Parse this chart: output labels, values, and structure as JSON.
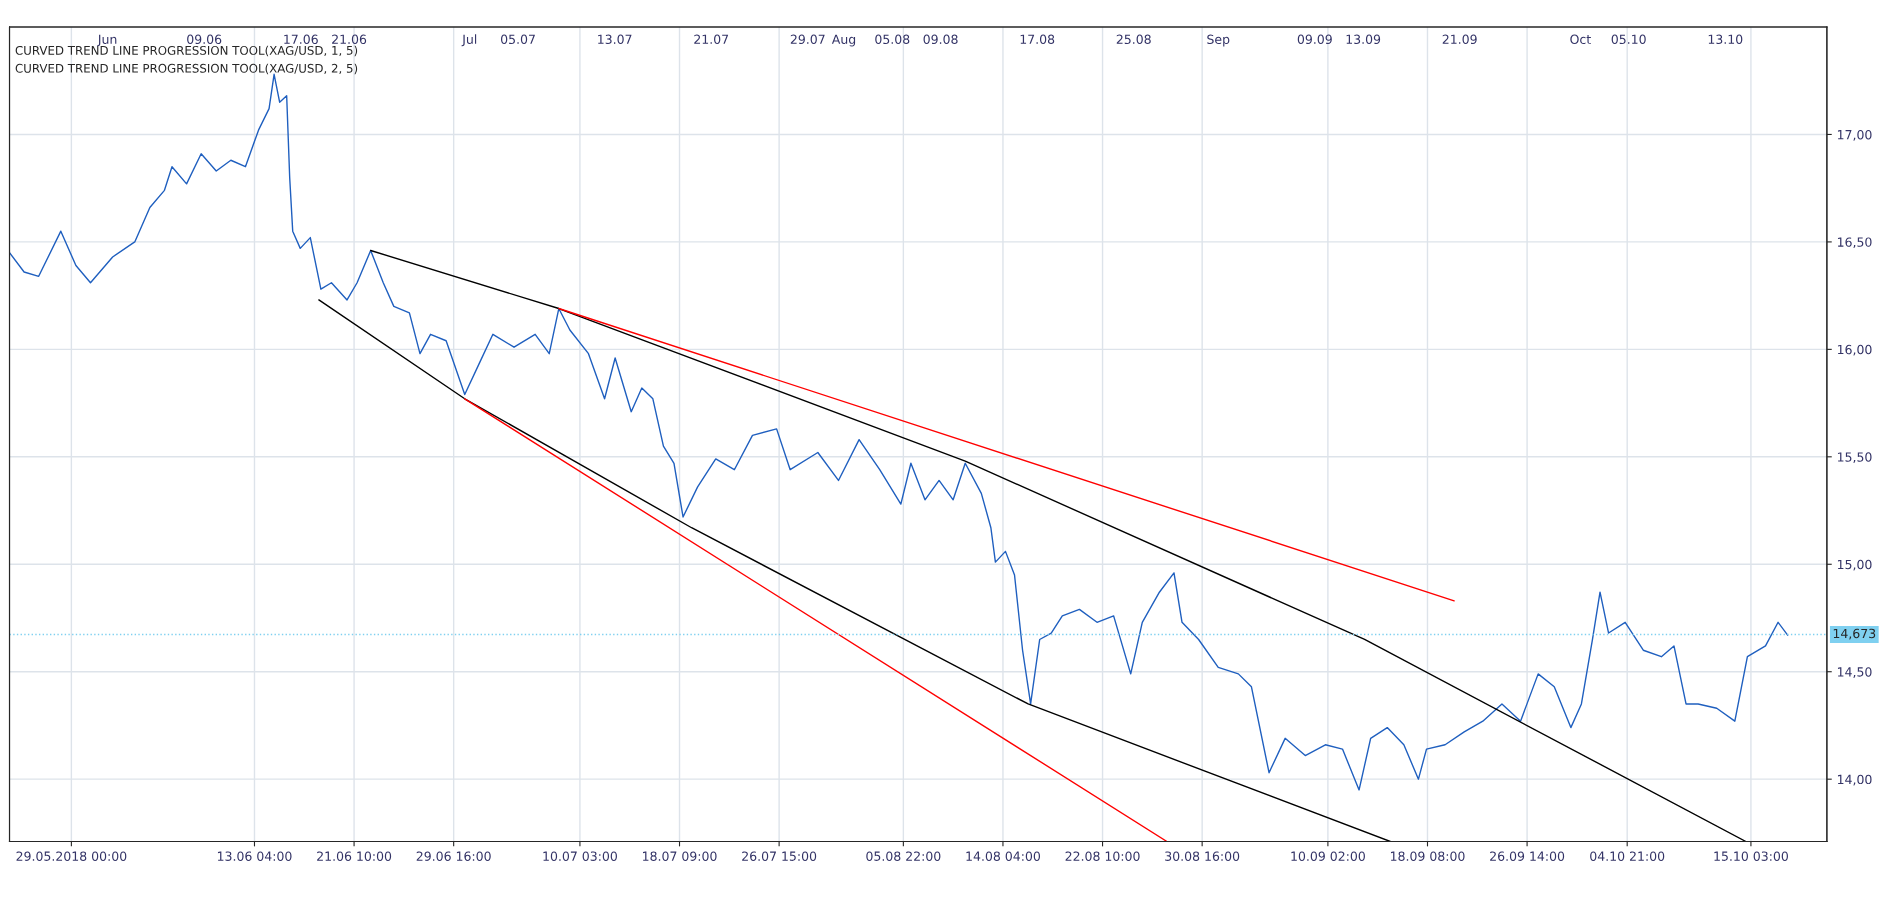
{
  "chart_data": {
    "type": "line",
    "xlim": [
      "2018-05-23T21:00",
      "2018-10-21T10:00"
    ],
    "ylim": [
      13.71,
      17.5
    ],
    "xticks": [
      {
        "value": "2018-05-29T00:00",
        "label": "29.05.2018 00:00"
      },
      {
        "value": "2018-06-13T04:00",
        "label": "13.06 04:00"
      },
      {
        "value": "2018-06-21T10:00",
        "label": "21.06 10:00"
      },
      {
        "value": "2018-06-29T16:00",
        "label": "29.06 16:00"
      },
      {
        "value": "2018-07-10T03:00",
        "label": "10.07 03:00"
      },
      {
        "value": "2018-07-18T09:00",
        "label": "18.07 09:00"
      },
      {
        "value": "2018-07-26T15:00",
        "label": "26.07 15:00"
      },
      {
        "value": "2018-08-05T22:00",
        "label": "05.08 22:00"
      },
      {
        "value": "2018-08-14T04:00",
        "label": "14.08 04:00"
      },
      {
        "value": "2018-08-22T10:00",
        "label": "22.08 10:00"
      },
      {
        "value": "2018-08-30T16:00",
        "label": "30.08 16:00"
      },
      {
        "value": "2018-09-10T02:00",
        "label": "10.09 02:00"
      },
      {
        "value": "2018-09-18T08:00",
        "label": "18.09 08:00"
      },
      {
        "value": "2018-09-26T14:00",
        "label": "26.09 14:00"
      },
      {
        "value": "2018-10-04T21:00",
        "label": "04.10 21:00"
      },
      {
        "value": "2018-10-15T03:00",
        "label": "15.10 03:00"
      }
    ],
    "x2lim": [
      "2018-05-23T21:00",
      "2018-10-21T10:00"
    ],
    "x2ticks": [
      {
        "value": "2018-06-01",
        "label": "Jun"
      },
      {
        "value": "2018-06-09",
        "label": "09.06"
      },
      {
        "value": "2018-06-17",
        "label": "17.06"
      },
      {
        "value": "2018-06-21",
        "label": "21.06"
      },
      {
        "value": "2018-07-01",
        "label": "Jul"
      },
      {
        "value": "2018-07-05",
        "label": "05.07"
      },
      {
        "value": "2018-07-13",
        "label": "13.07"
      },
      {
        "value": "2018-07-21",
        "label": "21.07"
      },
      {
        "value": "2018-07-29",
        "label": "29.07"
      },
      {
        "value": "2018-08-01",
        "label": "Aug"
      },
      {
        "value": "2018-08-05",
        "label": "05.08"
      },
      {
        "value": "2018-08-09",
        "label": "09.08"
      },
      {
        "value": "2018-08-17",
        "label": "17.08"
      },
      {
        "value": "2018-08-25",
        "label": "25.08"
      },
      {
        "value": "2018-09-01",
        "label": "Sep"
      },
      {
        "value": "2018-09-09",
        "label": "09.09"
      },
      {
        "value": "2018-09-13",
        "label": "13.09"
      },
      {
        "value": "2018-09-21",
        "label": "21.09"
      },
      {
        "value": "2018-10-01",
        "label": "Oct"
      },
      {
        "value": "2018-10-05",
        "label": "05.10"
      },
      {
        "value": "2018-10-13",
        "label": "13.10"
      }
    ],
    "yticks": [
      {
        "value": 14,
        "label": "14,00"
      },
      {
        "value": 14.5,
        "label": "14,50"
      },
      {
        "value": 15,
        "label": "15,00"
      },
      {
        "value": 15.5,
        "label": "15,50"
      },
      {
        "value": 16,
        "label": "16,00"
      },
      {
        "value": 16.5,
        "label": "16,50"
      },
      {
        "value": 17,
        "label": "17,00"
      }
    ],
    "grid": true,
    "legend": false,
    "annotations": [
      "CURVED TREND LINE PROGRESSION TOOL(XAG/USD, 1, 5)",
      "CURVED TREND LINE PROGRESSION TOOL(XAG/USD, 2, 5)"
    ],
    "ref_lines": [
      {
        "axis": "y",
        "value": 14.673,
        "label": "14,673",
        "color": "#7fd0f0",
        "line_style": "dotted"
      }
    ],
    "series": [
      {
        "color": "#1f5fbf",
        "x": [
          "2018-05-23T21:00",
          "2018-05-25T02:00",
          "2018-05-26T07:00",
          "2018-05-28T03:00",
          "2018-05-29T09:00",
          "2018-05-30T14:00",
          "2018-06-01T10:00",
          "2018-06-03T06:00",
          "2018-06-04T12:00",
          "2018-06-05T17:00",
          "2018-06-06T08:00",
          "2018-06-07T13:00",
          "2018-06-08T18:00",
          "2018-06-10T00:00",
          "2018-06-11T05:00",
          "2018-06-12T10:00",
          "2018-06-13T12:00",
          "2018-06-14T09:00",
          "2018-06-14T19:00",
          "2018-06-15T06:00",
          "2018-06-15T20:00",
          "2018-06-16T02:00",
          "2018-06-16T08:00",
          "2018-06-16T23:00",
          "2018-06-17T19:00",
          "2018-06-18T16:00",
          "2018-06-19T13:00",
          "2018-06-20T20:00",
          "2018-06-21T16:00",
          "2018-06-22T19:00",
          "2018-06-23T20:00",
          "2018-06-24T17:00",
          "2018-06-26T00:00",
          "2018-06-26T21:00",
          "2018-06-27T18:00",
          "2018-06-29T01:00",
          "2018-06-30T14:00",
          "2018-07-01T18:00",
          "2018-07-02T22:00",
          "2018-07-04T16:00",
          "2018-07-06T10:00",
          "2018-07-07T14:00",
          "2018-07-08T09:00",
          "2018-07-09T07:00",
          "2018-07-10T20:00",
          "2018-07-12T04:00",
          "2018-07-13T01:00",
          "2018-07-14T09:00",
          "2018-07-15T06:00",
          "2018-07-16T04:00",
          "2018-07-17T01:00",
          "2018-07-17T22:00",
          "2018-07-18T16:00",
          "2018-07-19T21:00",
          "2018-07-21T09:00",
          "2018-07-22T22:00",
          "2018-07-24T10:00",
          "2018-07-26T10:00",
          "2018-07-27T13:00",
          "2018-07-29T20:00",
          "2018-07-31T13:00",
          "2018-08-02T06:00",
          "2018-08-03T23:00",
          "2018-08-05T17:00",
          "2018-08-06T13:00",
          "2018-08-07T17:00",
          "2018-08-08T21:00",
          "2018-08-10T01:00",
          "2018-08-11T01:00",
          "2018-08-12T09:00",
          "2018-08-13T04:00",
          "2018-08-13T13:00",
          "2018-08-14T09:00",
          "2018-08-15T03:00",
          "2018-08-15T19:00",
          "2018-08-16T11:00",
          "2018-08-17T05:00",
          "2018-08-18T04:00",
          "2018-08-19T02:00",
          "2018-08-20T12:00",
          "2018-08-21T23:00",
          "2018-08-23T08:00",
          "2018-08-24T18:00",
          "2018-08-25T17:00",
          "2018-08-27T03:00",
          "2018-08-28T08:00",
          "2018-08-29T00:00",
          "2018-08-30T09:00",
          "2018-09-01T00:00",
          "2018-09-02T16:00",
          "2018-09-03T18:00",
          "2018-09-05T05:00",
          "2018-09-06T13:00",
          "2018-09-08T05:00",
          "2018-09-09T21:00",
          "2018-09-11T07:00",
          "2018-09-12T16:00",
          "2018-09-13T15:00",
          "2018-09-15T00:00",
          "2018-09-16T09:00",
          "2018-09-17T14:00",
          "2018-09-18T06:00",
          "2018-09-19T19:00",
          "2018-09-21T09:00",
          "2018-09-22T22:00",
          "2018-09-24T12:00",
          "2018-09-26T01:00",
          "2018-09-27T12:00",
          "2018-09-28T20:00",
          "2018-09-30T05:00",
          "2018-10-01T02:00",
          "2018-10-02T00:00",
          "2018-10-02T15:00",
          "2018-10-03T08:00",
          "2018-10-04T17:00",
          "2018-10-06T05:00",
          "2018-10-07T17:00",
          "2018-10-08T18:00",
          "2018-10-09T18:00",
          "2018-10-10T18:00",
          "2018-10-12T07:00",
          "2018-10-13T19:00",
          "2018-10-14T20:00",
          "2018-10-16T08:00",
          "2018-10-17T09:00",
          "2018-10-18T04:00"
        ],
        "values": [
          16.45,
          16.36,
          16.34,
          16.55,
          16.39,
          16.31,
          16.43,
          16.5,
          16.66,
          16.74,
          16.85,
          16.77,
          16.91,
          16.83,
          16.88,
          16.85,
          17.02,
          17.12,
          17.28,
          17.15,
          17.18,
          16.8,
          16.55,
          16.47,
          16.52,
          16.28,
          16.31,
          16.23,
          16.31,
          16.46,
          16.31,
          16.2,
          16.17,
          15.98,
          16.07,
          16.04,
          15.79,
          15.93,
          16.07,
          16.01,
          16.07,
          15.98,
          16.19,
          16.09,
          15.98,
          15.77,
          15.96,
          15.71,
          15.82,
          15.77,
          15.55,
          15.47,
          15.22,
          15.36,
          15.49,
          15.44,
          15.6,
          15.63,
          15.44,
          15.52,
          15.39,
          15.58,
          15.44,
          15.28,
          15.47,
          15.3,
          15.39,
          15.3,
          15.47,
          15.33,
          15.17,
          15.01,
          15.06,
          14.95,
          14.6,
          14.35,
          14.65,
          14.68,
          14.76,
          14.79,
          14.73,
          14.76,
          14.49,
          14.73,
          14.87,
          14.96,
          14.73,
          14.65,
          14.52,
          14.49,
          14.43,
          14.03,
          14.19,
          14.11,
          14.16,
          14.14,
          13.95,
          14.19,
          14.24,
          14.16,
          14.0,
          14.14,
          14.16,
          14.22,
          14.27,
          14.35,
          14.27,
          14.49,
          14.43,
          14.24,
          14.35,
          14.65,
          14.87,
          14.68,
          14.73,
          14.6,
          14.57,
          14.62,
          14.35,
          14.35,
          14.33,
          14.27,
          14.57,
          14.62,
          14.73,
          14.67
        ]
      },
      {
        "color": "#000000",
        "x": [
          "2018-06-22T19:00",
          "2018-07-08T09:00",
          "2018-08-11T01:00",
          "2018-09-13T03:00",
          "2018-10-14T17:00"
        ],
        "values": [
          16.46,
          16.19,
          15.48,
          14.65,
          13.71
        ]
      },
      {
        "color": "#000000",
        "x": [
          "2018-06-18T12:00",
          "2018-06-30T14:00",
          "2018-07-19T09:00",
          "2018-08-16T06:00",
          "2018-09-15T06:00"
        ],
        "values": [
          16.23,
          15.77,
          15.17,
          14.35,
          13.71
        ]
      },
      {
        "color": "#ff0000",
        "x": [
          "2018-07-08T09:00",
          "2018-09-20T13:00"
        ],
        "values": [
          16.19,
          14.83
        ]
      },
      {
        "color": "#ff0000",
        "x": [
          "2018-06-30T14:00",
          "2018-08-27T18:00"
        ],
        "values": [
          15.77,
          13.71
        ]
      }
    ]
  }
}
